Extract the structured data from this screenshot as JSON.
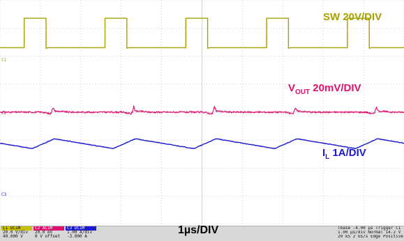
{
  "chart_data": {
    "type": "line",
    "title": "",
    "xlabel": "1µs/DIV",
    "xlim": [
      0,
      10
    ],
    "ylim": [
      -4,
      4
    ],
    "grid": true,
    "series": [
      {
        "name": "SW 20V/DIV",
        "color": "#a8a000",
        "kind": "square",
        "baseline_div": 2.3,
        "high_div": 3.35,
        "period": 2.0,
        "rises": [
          0.6,
          2.6,
          4.6,
          6.6,
          8.6
        ],
        "duty": 0.27
      },
      {
        "name": "VOUT 20mV/DIV",
        "color": "#e0106e",
        "kind": "ripple",
        "baseline_div": 0.0,
        "period": 2.0,
        "spikes": [
          1.3,
          3.3,
          5.3,
          7.3,
          9.3
        ],
        "spike_div": 0.2
      },
      {
        "name": "IL 1A/DIV",
        "color": "#1a1ad0",
        "kind": "triangle",
        "baseline_div": -1.3,
        "ripple_div": 0.35,
        "period": 2.0,
        "peaks": [
          1.35,
          3.35,
          5.35,
          7.35,
          9.35
        ]
      }
    ]
  },
  "labels": {
    "sw": "SW 20V/DIV",
    "vout_main": "V",
    "vout_sub": "OUT",
    "vout_rest": " 20mV/DIV",
    "il_main": "I",
    "il_sub": "L",
    "il_rest": " 1A/DIV",
    "timebase": "1µs/DIV"
  },
  "channels": [
    {
      "hdr": "C1 DC1M",
      "l1": "20.0 V/div",
      "l2": "40.000 V",
      "color": "#c8c000"
    },
    {
      "hdr": "C2 AC1M",
      "l1": "20.0 mV",
      "l2": "0 V offset",
      "color": "#e0106e"
    },
    {
      "hdr": "C3 DC1M",
      "l1": "1.00 A/div",
      "l2": "-3.000 A",
      "color": "#1a1ad0"
    }
  ],
  "trigger": {
    "r1": "Tbase -4.00 µs  Trigger C1 DC",
    "r2": "      1.00 µs/div  Normal  14.2 V",
    "r3": "20 kS     2 GS/s  Edge  Positive"
  },
  "markers": {
    "c1": "C1",
    "c2": "C2",
    "c3": "C3"
  }
}
